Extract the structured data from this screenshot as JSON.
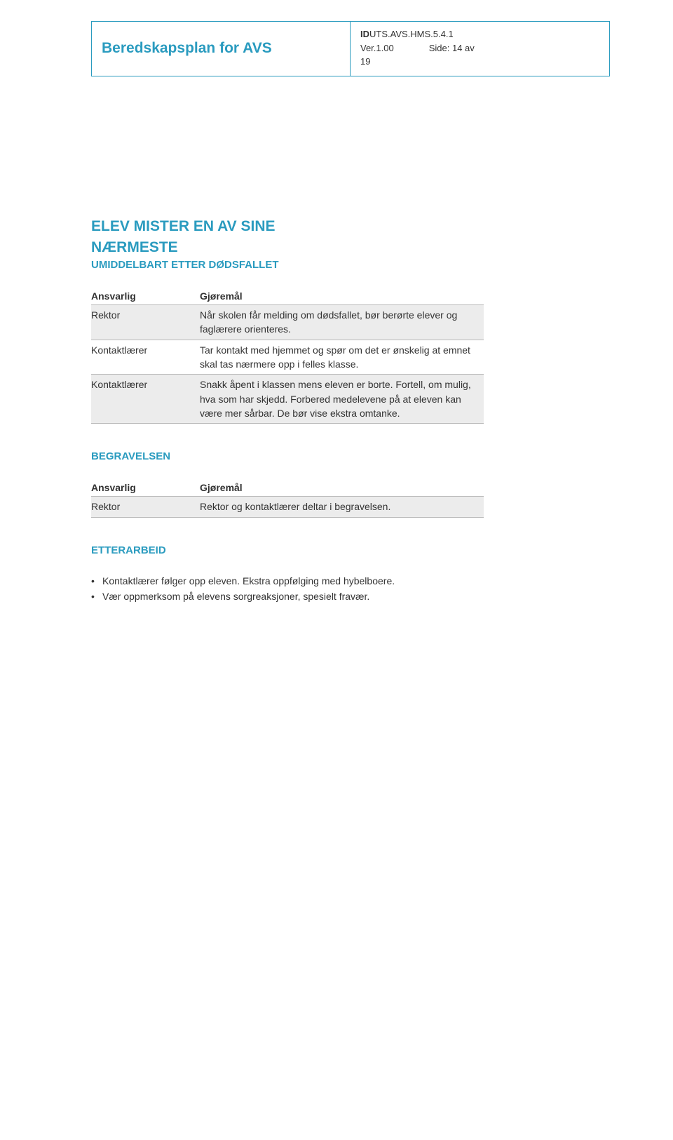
{
  "colors": {
    "accent": "#2a9bbf",
    "border": "#2a9bbf",
    "shaded_row": "#ececec",
    "row_border": "#b9b9b9",
    "text": "#333333",
    "watermark": "#e9f5f8",
    "background": "#ffffff"
  },
  "header": {
    "doc_title": "Beredskapsplan for AVS",
    "id_prefix": "ID",
    "id_rest": "UTS.AVS.HMS.5.4.1",
    "ver_label": "Ver.1.00",
    "side_label": "Side: 14 av",
    "page_count": "19"
  },
  "section1": {
    "title_line1": "ELEV MISTER EN AV SINE",
    "title_line2": "NÆRMESTE",
    "subheading": "UMIDDELBART ETTER DØDSFALLET",
    "table": {
      "col1_header": "Ansvarlig",
      "col2_header": "Gjøremål",
      "rows": [
        {
          "shaded": true,
          "col1": "Rektor",
          "col2": "Når skolen får melding om dødsfallet, bør berørte elever og faglærere orienteres."
        },
        {
          "shaded": false,
          "col1": "Kontaktlærer",
          "col2": "Tar kontakt med hjemmet og spør om det er ønskelig at emnet skal tas nærmere opp i felles klasse."
        },
        {
          "shaded": true,
          "col1": "Kontaktlærer",
          "col2": "Snakk åpent i klassen mens eleven er borte. Fortell, om mulig, hva som har skjedd. Forbered medelevene på at eleven kan være mer sårbar. De bør vise ekstra omtanke."
        }
      ]
    }
  },
  "section2": {
    "label": "BEGRAVELSEN",
    "table": {
      "col1_header": "Ansvarlig",
      "col2_header": "Gjøremål",
      "rows": [
        {
          "shaded": true,
          "col1": "Rektor",
          "col2": "Rektor og kontaktlærer deltar i begravelsen."
        }
      ]
    }
  },
  "section3": {
    "label": "ETTERARBEID",
    "bullets": [
      "Kontaktlærer følger opp eleven. Ekstra oppfølging med hybelboere.",
      "Vær oppmerksom på elevens sorgreaksjoner, spesielt fravær."
    ]
  }
}
